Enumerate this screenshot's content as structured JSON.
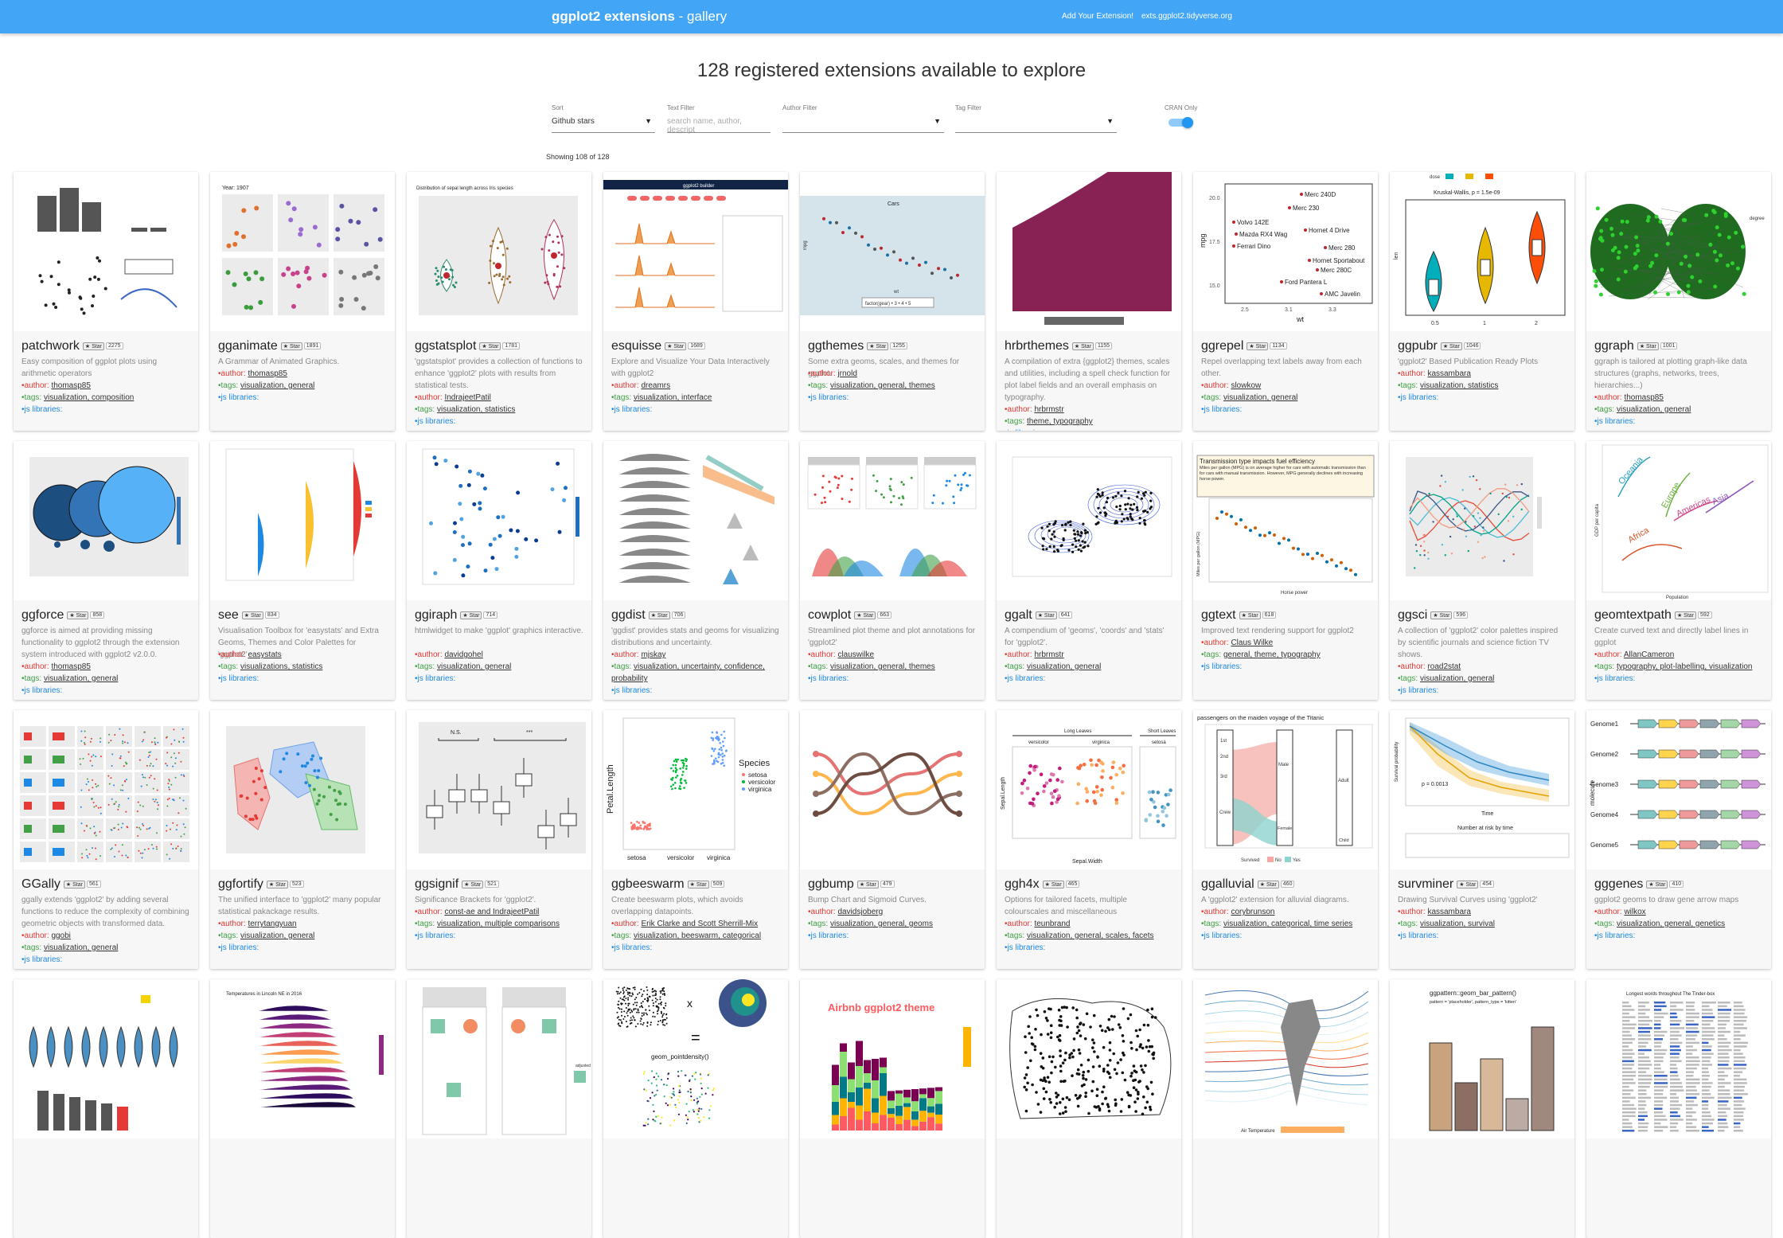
{
  "header": {
    "brand_bold": "ggplot2 extensions",
    "brand_rest": " - gallery",
    "nav_add": "Add Your Extension!",
    "nav_site": "exts.ggplot2.tidyverse.org"
  },
  "headline": "128 registered extensions available to explore",
  "controls": {
    "sort_label": "Sort",
    "sort_value": "Github stars",
    "text_label": "Text Filter",
    "text_placeholder": "search name, author, descript",
    "author_label": "Author Filter",
    "tag_label": "Tag Filter",
    "cran_label": "CRAN Only"
  },
  "showing": "Showing 108 of 128",
  "labels": {
    "star": "★ Star",
    "author": "author:",
    "tags": "tags:",
    "js": "js libraries:"
  },
  "cards": [
    {
      "name": "patchwork",
      "stars": "2275",
      "desc": "Easy composition of ggplot plots using arithmetic operators",
      "author": "thomasp85",
      "tags": "visualization, composition",
      "thumb": "patchwork"
    },
    {
      "name": "gganimate",
      "stars": "1891",
      "desc": "A Grammar of Animated Graphics.",
      "author": "thomasp85",
      "tags": "visualization, general",
      "thumb": "gganimate"
    },
    {
      "name": "ggstatsplot",
      "stars": "1781",
      "desc": "'ggstatsplot' provides a collection of functions to enhance 'ggplot2' plots with results from statistical tests.",
      "author": "IndrajeetPatil",
      "tags": "visualization, statistics",
      "thumb": "ggstatsplot"
    },
    {
      "name": "esquisse",
      "stars": "1689",
      "desc": "Explore and Visualize Your Data Interactively with ggplot2",
      "author": "dreamrs",
      "tags": "visualization, interface",
      "thumb": "esquisse"
    },
    {
      "name": "ggthemes",
      "stars": "1255",
      "desc": "Some extra geoms, scales, and themes for ggplot.",
      "author": "jrnold",
      "tags": "visualization, general, themes",
      "thumb": "ggthemes"
    },
    {
      "name": "hrbrthemes",
      "stars": "1155",
      "desc": "A compilation of extra {ggplot2} themes, scales and utilities, including a spell check function for plot label fields and an overall emphasis on typography.",
      "author": "hrbrmstr",
      "tags": "theme, typography",
      "thumb": "hrbrthemes"
    },
    {
      "name": "ggrepel",
      "stars": "1134",
      "desc": "Repel overlapping text labels away from each other.",
      "author": "slowkow",
      "tags": "visualization, general",
      "thumb": "ggrepel"
    },
    {
      "name": "ggpubr",
      "stars": "1046",
      "desc": "'ggplot2' Based Publication Ready Plots",
      "author": "kassambara",
      "tags": "visualization, statistics",
      "thumb": "ggpubr"
    },
    {
      "name": "ggraph",
      "stars": "1001",
      "desc": "ggraph is tailored at plotting graph-like data structures (graphs, networks, trees, hierarchies...)",
      "author": "thomasp85",
      "tags": "visualization, general",
      "thumb": "ggraph"
    },
    {
      "name": "ggforce",
      "stars": "858",
      "desc": "ggforce is aimed at providing missing functionality to ggplot2 through the extension system introduced with ggplot2 v2.0.0.",
      "author": "thomasp85",
      "tags": "visualization, general",
      "thumb": "ggforce"
    },
    {
      "name": "see",
      "stars": "834",
      "desc": "Visualisation Toolbox for 'easystats' and Extra Geoms, Themes and Color Palettes for 'ggplot2'",
      "author": "easystats",
      "tags": "visualizations, statistics",
      "thumb": "see"
    },
    {
      "name": "ggiraph",
      "stars": "714",
      "desc": "htmlwidget to make 'ggplot' graphics interactive.",
      "author": "davidgohel",
      "tags": "visualization, general",
      "thumb": "ggiraph"
    },
    {
      "name": "ggdist",
      "stars": "706",
      "desc": "'ggdist' provides stats and geoms for visualizing distributions and uncertainty.",
      "author": "mjskay",
      "tags": "visualization, uncertainty, confidence, probability",
      "thumb": "ggdist"
    },
    {
      "name": "cowplot",
      "stars": "663",
      "desc": "Streamlined plot theme and plot annotations for 'ggplot2'",
      "author": "clauswilke",
      "tags": "visualization, general, themes",
      "thumb": "cowplot"
    },
    {
      "name": "ggalt",
      "stars": "641",
      "desc": "A compendium of 'geoms', 'coords' and 'stats' for 'ggplot2'.",
      "author": "hrbrmstr",
      "tags": "visualization, general",
      "thumb": "ggalt"
    },
    {
      "name": "ggtext",
      "stars": "618",
      "desc": "Improved text rendering support for ggplot2",
      "author": "Claus Wilke",
      "tags": "general, theme, typography",
      "thumb": "ggtext"
    },
    {
      "name": "ggsci",
      "stars": "596",
      "desc": "A collection of 'ggplot2' color palettes inspired by scientific journals and science fiction TV shows.",
      "author": "road2stat",
      "tags": "visualization, general",
      "thumb": "ggsci"
    },
    {
      "name": "geomtextpath",
      "stars": "592",
      "desc": "Create curved text and directly label lines in ggplot",
      "author": "AllanCameron",
      "tags": "typography, plot-labelling, visualization",
      "thumb": "geomtextpath"
    },
    {
      "name": "GGally",
      "stars": "561",
      "desc": "ggally extends 'ggplot2' by adding several functions to reduce the complexity of combining geometric objects with transformed data.",
      "author": "ggobi",
      "tags": "visualization, general",
      "thumb": "GGally"
    },
    {
      "name": "ggfortify",
      "stars": "523",
      "desc": "The unified interface to 'ggplot2' many popular statistical pakackage results.",
      "author": "terrytangyuan",
      "tags": "visualization, general",
      "thumb": "ggfortify"
    },
    {
      "name": "ggsignif",
      "stars": "521",
      "desc": "Significance Brackets for 'ggplot2'.",
      "author": "const-ae and IndrajeetPatil",
      "tags": "visualization, multiple comparisons",
      "thumb": "ggsignif"
    },
    {
      "name": "ggbeeswarm",
      "stars": "509",
      "desc": "Create beeswarm plots, which avoids overlapping datapoints.",
      "author": "Erik Clarke and Scott Sherrill-Mix",
      "tags": "visualization, beeswarm, categorical",
      "thumb": "ggbeeswarm"
    },
    {
      "name": "ggbump",
      "stars": "479",
      "desc": "Bump Chart and Sigmoid Curves.",
      "author": "davidsjoberg",
      "tags": "visualization, general, geoms",
      "thumb": "ggbump"
    },
    {
      "name": "ggh4x",
      "stars": "465",
      "desc": "Options for tailored facets, multiple colourscales and miscellaneous",
      "author": "teunbrand",
      "tags": "visualization, general, scales, facets",
      "thumb": "ggh4x"
    },
    {
      "name": "ggalluvial",
      "stars": "460",
      "desc": "A 'ggplot2' extension for alluvial diagrams.",
      "author": "corybrunson",
      "tags": "visualization, categorical, time series",
      "thumb": "ggalluvial"
    },
    {
      "name": "survminer",
      "stars": "454",
      "desc": "Drawing Survival Curves using 'ggplot2'",
      "author": "kassambara",
      "tags": "visualization, survival",
      "thumb": "survminer"
    },
    {
      "name": "gggenes",
      "stars": "410",
      "desc": "ggplot2 geoms to draw gene arrow maps",
      "author": "wilkox",
      "tags": "visualization, general, genetics",
      "thumb": "gggenes"
    },
    {
      "name": "",
      "stars": "",
      "desc": "",
      "author": "",
      "tags": "",
      "thumb": "r4a"
    },
    {
      "name": "",
      "stars": "",
      "desc": "",
      "author": "",
      "tags": "",
      "thumb": "r4b"
    },
    {
      "name": "",
      "stars": "",
      "desc": "",
      "author": "",
      "tags": "",
      "thumb": "r4c"
    },
    {
      "name": "",
      "stars": "",
      "desc": "",
      "author": "",
      "tags": "",
      "thumb": "r4d"
    },
    {
      "name": "",
      "stars": "",
      "desc": "",
      "author": "",
      "tags": "",
      "thumb": "r4e"
    },
    {
      "name": "",
      "stars": "",
      "desc": "",
      "author": "",
      "tags": "",
      "thumb": "r4f"
    },
    {
      "name": "",
      "stars": "",
      "desc": "",
      "author": "",
      "tags": "",
      "thumb": "r4g"
    },
    {
      "name": "",
      "stars": "",
      "desc": "",
      "author": "",
      "tags": "",
      "thumb": "r4h"
    },
    {
      "name": "",
      "stars": "",
      "desc": "",
      "author": "",
      "tags": "",
      "thumb": "r4i"
    }
  ],
  "thumb_text": {
    "gganimate": "Year: 1907",
    "ggstatsplot": "Distribution of sepal length across Iris species",
    "esquisse": "ggplot2 builder",
    "ggthemes_title": "Cars",
    "ggthemes_legend": "factor(gear) • 3 • 4 • 5",
    "ggthemes_x": "wt",
    "ggthemes_y": "mpg",
    "ggrepel_labels": [
      "Merc 240D",
      "Merc 230",
      "Volvo 142E",
      "Hornet 4 Drive",
      "Mazda RX4 Wag",
      "Ferrari Dino",
      "Merc 280",
      "Hornet Sportabout",
      "Merc 280C",
      "Ford Pantera L",
      "AMC Javelin"
    ],
    "ggrepel_x": "wt",
    "ggrepel_y": "mpg",
    "ggrepel_xticks": [
      "2.5",
      "3.1",
      "3.3"
    ],
    "ggrepel_yticks": [
      "20.0",
      "17.5",
      "15.0"
    ],
    "ggpubr_title": "Kruskal-Wallis, p = 1.5e-09",
    "ggpubr_dose": "dose",
    "ggpubr_dose_values": [
      "0.5",
      "1",
      "2"
    ],
    "ggpubr_y": "len",
    "ggraph_legend": "degree",
    "geomtextpath_labels": [
      "Oceania",
      "Europe",
      "Americas",
      "Asia",
      "Africa"
    ],
    "geomtextpath_x": "Population",
    "geomtextpath_y": "GDP per capita",
    "ggtext_title": "Transmission type impacts fuel efficiency",
    "ggtext_sub": "Miles per gallon (MPG) is on average higher for cars with automatic transmission than for cars with manual transmission. However, MPG generally declines with increasing horse power.",
    "ggtext_x": "Horse power",
    "ggtext_y": "Miles per gallon (MPG)",
    "ggsignif_ns": "N.S.",
    "ggsignif_star": "***",
    "ggbeeswarm_species": "Species",
    "ggbeeswarm_levels": [
      "setosa",
      "versicolor",
      "virginica"
    ],
    "ggbeeswarm_y": "Petal.Length",
    "ggh4x_labels": [
      "Long Leaves",
      "Short Leaves",
      "versicolor",
      "virginica",
      "setosa"
    ],
    "ggh4x_x": "Sepal.Width",
    "ggh4x_y": "Sepal.Length",
    "ggalluvial_title": "passengers on the maiden voyage of the Titanic",
    "ggalluvial_labels": [
      "1st",
      "2nd",
      "3rd",
      "Crew",
      "Male",
      "Female",
      "Adult",
      "Child"
    ],
    "ggalluvial_survived": "Survived",
    "ggalluvial_no": "No",
    "ggalluvial_yes": "Yes",
    "survminer_p": "p = 0.0013",
    "survminer_risk": "Number at risk by time",
    "survminer_x": "Time",
    "survminer_y": "Survival probability",
    "gggenes_genomes": [
      "Genome1",
      "Genome2",
      "Genome3",
      "Genome4",
      "Genome5"
    ],
    "gggenes_y": "molecule",
    "r4d_title": "Airbnb ggplot2 theme",
    "r4c_x": "x",
    "r4c_eq": "=",
    "r4c_fn": "geom_pointdensity()",
    "r4h_title": "ggpattern::geom_bar_pattern()",
    "r4h_sub": "pattern = 'placeholder', pattern_type = 'kitten'",
    "r4i_title": "Longest words throughout The Tinder-box",
    "r4g_legend": "Air Temperature",
    "r4b_title": "Temperatures in Lincoln NE in 2016",
    "r4a_legend": "adjusted"
  },
  "colors": {
    "topbar": "#42a5f5",
    "toggle": "#2196f3",
    "author_dot": "#e53935",
    "tag_dot": "#43a047",
    "js": "#1e88e5"
  }
}
